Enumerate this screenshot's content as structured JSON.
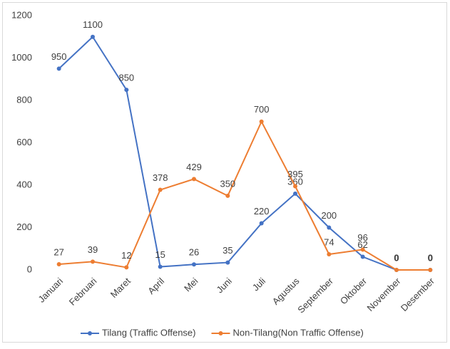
{
  "chart_data": {
    "type": "line",
    "categories": [
      "Januari",
      "Februari",
      "Maret",
      "April",
      "Mei",
      "Juni",
      "Juli",
      "Agustus",
      "September",
      "Oktober",
      "November",
      "Desember"
    ],
    "series": [
      {
        "name": "Tilang (Traffic Offense)",
        "color": "#4472c4",
        "values": [
          950,
          1100,
          850,
          15,
          26,
          35,
          220,
          360,
          200,
          62,
          0,
          0
        ]
      },
      {
        "name": "Non-Tilang(Non Traffic Offense)",
        "color": "#ed7d31",
        "values": [
          27,
          39,
          12,
          378,
          429,
          350,
          700,
          395,
          74,
          96,
          0,
          0
        ]
      }
    ],
    "ylim": [
      0,
      1200
    ],
    "yticks": [
      0,
      200,
      400,
      600,
      800,
      1000,
      1200
    ],
    "grid": false,
    "legend": "bottom"
  }
}
